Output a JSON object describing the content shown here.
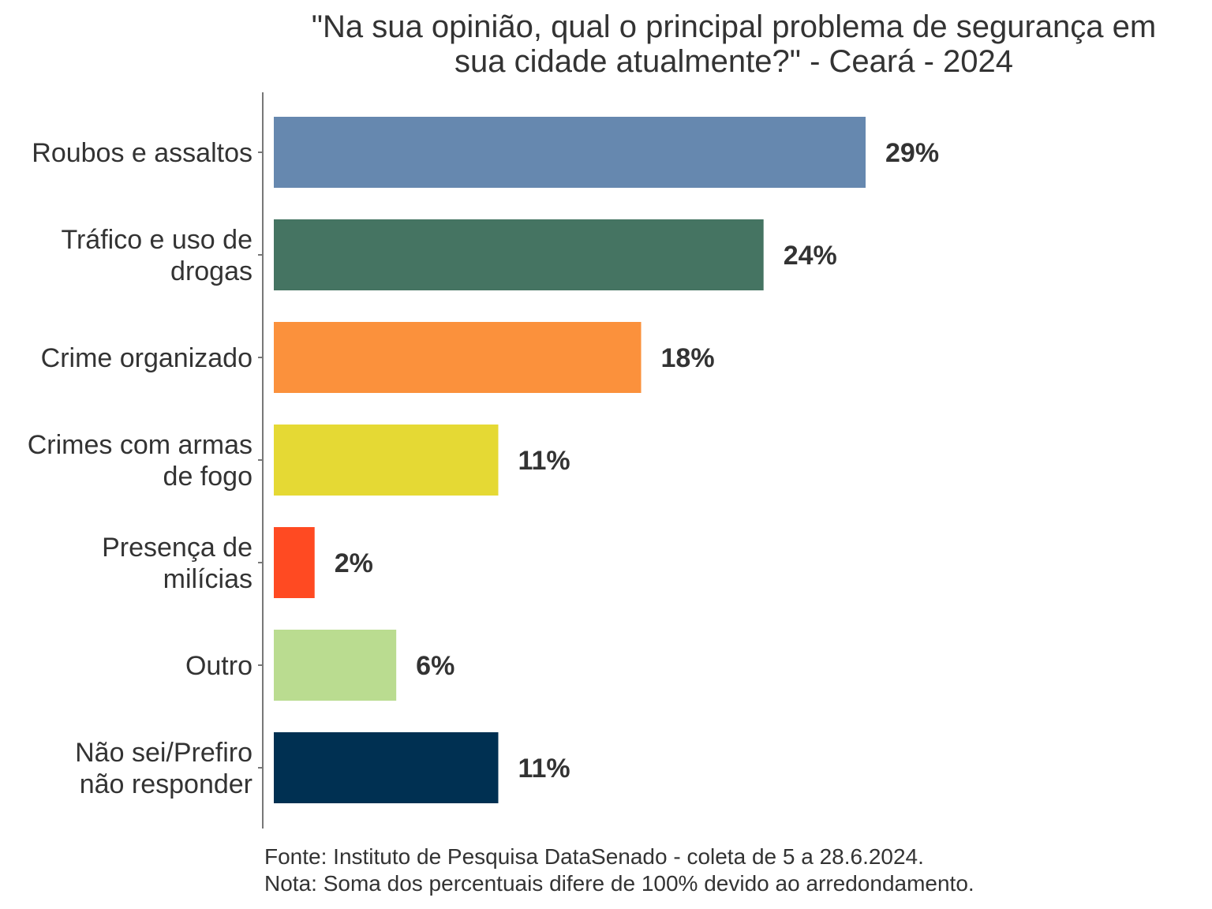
{
  "chart_data": {
    "type": "bar",
    "orientation": "horizontal",
    "title_lines": [
      "\"Na sua opinião, qual o principal problema de segurança em",
      "sua cidade atualmente?\" - Ceará - 2024"
    ],
    "categories": [
      "Roubos e assaltos",
      "Tráfico e uso de\ndrogas",
      "Crime organizado",
      "Crimes com armas\nde fogo",
      "Presença de\nmilícias",
      "Outro",
      "Não sei/Prefiro\nnão responder"
    ],
    "values": [
      29,
      24,
      18,
      11,
      2,
      6,
      11
    ],
    "value_labels": [
      "29%",
      "24%",
      "18%",
      "11%",
      "2%",
      "6%",
      "11%"
    ],
    "colors": [
      "#6688AF",
      "#457462",
      "#FB913C",
      "#E5D934",
      "#FF4A22",
      "#BADC90",
      "#003052"
    ],
    "xlim": [
      0,
      29
    ],
    "xlabel": "",
    "ylabel": "",
    "grid": false,
    "legend": "none"
  },
  "notes": {
    "source": "Fonte: Instituto de Pesquisa DataSenado - coleta de 5 a 28.6.2024.",
    "note": "Nota: Soma dos percentuais difere de 100% devido ao arredondamento."
  }
}
